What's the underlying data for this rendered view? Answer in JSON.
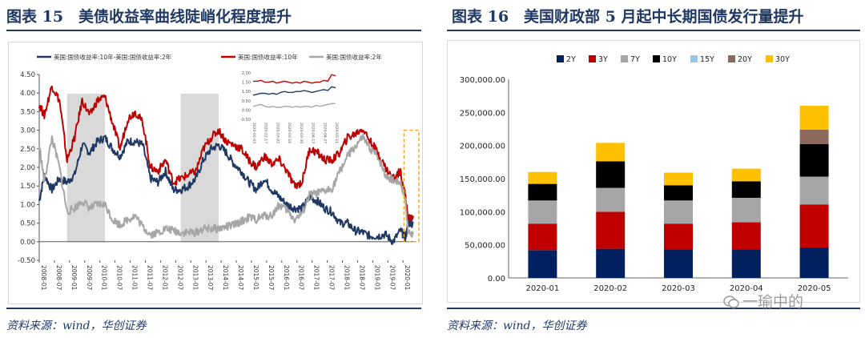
{
  "left": {
    "title": "图表 15　美债收益率曲线陡峭化程度提升",
    "source": "资料来源：wind，华创证券"
  },
  "right": {
    "title": "图表 16　美国财政部 5 月起中长期国债发行量提升",
    "source": "资料来源：wind，华创证券"
  },
  "watermark": "一瑜中的",
  "chart_data": [
    {
      "type": "line",
      "title": "",
      "legend_position": "top",
      "ylim": [
        -0.5,
        4.5
      ],
      "y_ticks": [
        "-0.50",
        "0.00",
        "0.50",
        "1.00",
        "1.50",
        "2.00",
        "2.50",
        "3.00",
        "3.50",
        "4.00",
        "4.50"
      ],
      "x_ticks": [
        "2008-01",
        "2008-07",
        "2009-01",
        "2009-07",
        "2010-01",
        "2010-07",
        "2011-01",
        "2011-07",
        "2012-01",
        "2012-07",
        "2013-01",
        "2013-07",
        "2014-01",
        "2014-07",
        "2015-01",
        "2015-07",
        "2016-01",
        "2016-07",
        "2017-01",
        "2017-07",
        "2018-01",
        "2018-07",
        "2019-01",
        "2019-07",
        "2020-01"
      ],
      "shaded_periods": [
        [
          "2008-12",
          "2010-03"
        ],
        [
          "2012-09",
          "2013-12"
        ]
      ],
      "highlight_box": [
        "2020-02",
        "2020-06"
      ],
      "series": [
        {
          "name": "美国:国债收益率:10年-美国:国债收益率:2年",
          "color": "#1f3864",
          "points": [
            [
              "2008-01",
              1.1
            ],
            [
              "2008-03",
              1.8
            ],
            [
              "2008-06",
              1.4
            ],
            [
              "2008-09",
              1.7
            ],
            [
              "2008-12",
              1.6
            ],
            [
              "2009-03",
              1.8
            ],
            [
              "2009-06",
              2.6
            ],
            [
              "2009-09",
              2.4
            ],
            [
              "2009-12",
              2.7
            ],
            [
              "2010-03",
              2.8
            ],
            [
              "2010-06",
              2.5
            ],
            [
              "2010-09",
              2.3
            ],
            [
              "2010-12",
              2.7
            ],
            [
              "2011-03",
              2.7
            ],
            [
              "2011-06",
              2.6
            ],
            [
              "2011-09",
              1.7
            ],
            [
              "2011-12",
              1.6
            ],
            [
              "2012-03",
              1.9
            ],
            [
              "2012-06",
              1.4
            ],
            [
              "2012-09",
              1.4
            ],
            [
              "2012-12",
              1.5
            ],
            [
              "2013-03",
              1.7
            ],
            [
              "2013-06",
              2.2
            ],
            [
              "2013-09",
              2.5
            ],
            [
              "2013-12",
              2.6
            ],
            [
              "2014-03",
              2.4
            ],
            [
              "2014-06",
              2.1
            ],
            [
              "2014-09",
              1.9
            ],
            [
              "2014-12",
              1.6
            ],
            [
              "2015-03",
              1.4
            ],
            [
              "2015-06",
              1.7
            ],
            [
              "2015-09",
              1.4
            ],
            [
              "2015-12",
              1.2
            ],
            [
              "2016-03",
              1.0
            ],
            [
              "2016-06",
              0.9
            ],
            [
              "2016-09",
              0.9
            ],
            [
              "2016-12",
              1.2
            ],
            [
              "2017-03",
              1.1
            ],
            [
              "2017-06",
              0.9
            ],
            [
              "2017-09",
              0.8
            ],
            [
              "2017-12",
              0.5
            ],
            [
              "2018-03",
              0.5
            ],
            [
              "2018-06",
              0.3
            ],
            [
              "2018-09",
              0.25
            ],
            [
              "2018-12",
              0.15
            ],
            [
              "2019-03",
              0.15
            ],
            [
              "2019-06",
              0.2
            ],
            [
              "2019-09",
              0.0
            ],
            [
              "2019-12",
              0.3
            ],
            [
              "2020-02",
              0.1
            ],
            [
              "2020-03",
              0.5
            ],
            [
              "2020-05",
              0.5
            ]
          ]
        },
        {
          "name": "美国:国债收益率:10年",
          "color": "#c00000",
          "points": [
            [
              "2008-01",
              3.7
            ],
            [
              "2008-03",
              3.4
            ],
            [
              "2008-06",
              4.2
            ],
            [
              "2008-09",
              3.8
            ],
            [
              "2008-12",
              2.2
            ],
            [
              "2009-03",
              2.8
            ],
            [
              "2009-06",
              3.8
            ],
            [
              "2009-09",
              3.4
            ],
            [
              "2009-12",
              3.8
            ],
            [
              "2010-03",
              3.9
            ],
            [
              "2010-06",
              3.2
            ],
            [
              "2010-09",
              2.5
            ],
            [
              "2010-12",
              3.3
            ],
            [
              "2011-03",
              3.5
            ],
            [
              "2011-06",
              3.2
            ],
            [
              "2011-09",
              2.0
            ],
            [
              "2011-12",
              1.9
            ],
            [
              "2012-03",
              2.2
            ],
            [
              "2012-06",
              1.6
            ],
            [
              "2012-09",
              1.7
            ],
            [
              "2012-12",
              1.8
            ],
            [
              "2013-03",
              1.9
            ],
            [
              "2013-06",
              2.5
            ],
            [
              "2013-09",
              2.8
            ],
            [
              "2013-12",
              3.0
            ],
            [
              "2014-03",
              2.7
            ],
            [
              "2014-06",
              2.6
            ],
            [
              "2014-09",
              2.5
            ],
            [
              "2014-12",
              2.2
            ],
            [
              "2015-03",
              2.0
            ],
            [
              "2015-06",
              2.3
            ],
            [
              "2015-09",
              2.1
            ],
            [
              "2015-12",
              2.2
            ],
            [
              "2016-03",
              1.9
            ],
            [
              "2016-06",
              1.5
            ],
            [
              "2016-09",
              1.6
            ],
            [
              "2016-12",
              2.5
            ],
            [
              "2017-03",
              2.4
            ],
            [
              "2017-06",
              2.2
            ],
            [
              "2017-09",
              2.2
            ],
            [
              "2017-12",
              2.4
            ],
            [
              "2018-03",
              2.8
            ],
            [
              "2018-06",
              2.9
            ],
            [
              "2018-09",
              3.05
            ],
            [
              "2018-12",
              2.7
            ],
            [
              "2019-03",
              2.4
            ],
            [
              "2019-06",
              2.0
            ],
            [
              "2019-09",
              1.7
            ],
            [
              "2019-12",
              1.9
            ],
            [
              "2020-02",
              1.2
            ],
            [
              "2020-03",
              0.6
            ],
            [
              "2020-05",
              0.7
            ]
          ]
        },
        {
          "name": "美国:国债收益率:2年",
          "color": "#a6a6a6",
          "points": [
            [
              "2008-01",
              2.6
            ],
            [
              "2008-03",
              1.6
            ],
            [
              "2008-06",
              2.8
            ],
            [
              "2008-09",
              2.0
            ],
            [
              "2008-12",
              0.8
            ],
            [
              "2009-03",
              0.9
            ],
            [
              "2009-06",
              1.1
            ],
            [
              "2009-09",
              0.9
            ],
            [
              "2009-12",
              1.0
            ],
            [
              "2010-03",
              1.0
            ],
            [
              "2010-06",
              0.6
            ],
            [
              "2010-09",
              0.45
            ],
            [
              "2010-12",
              0.6
            ],
            [
              "2011-03",
              0.7
            ],
            [
              "2011-06",
              0.4
            ],
            [
              "2011-09",
              0.2
            ],
            [
              "2011-12",
              0.25
            ],
            [
              "2012-03",
              0.35
            ],
            [
              "2012-06",
              0.3
            ],
            [
              "2012-09",
              0.25
            ],
            [
              "2012-12",
              0.25
            ],
            [
              "2013-03",
              0.25
            ],
            [
              "2013-06",
              0.35
            ],
            [
              "2013-09",
              0.35
            ],
            [
              "2013-12",
              0.35
            ],
            [
              "2014-03",
              0.4
            ],
            [
              "2014-06",
              0.45
            ],
            [
              "2014-09",
              0.55
            ],
            [
              "2014-12",
              0.65
            ],
            [
              "2015-03",
              0.6
            ],
            [
              "2015-06",
              0.7
            ],
            [
              "2015-09",
              0.7
            ],
            [
              "2015-12",
              1.0
            ],
            [
              "2016-03",
              0.85
            ],
            [
              "2016-06",
              0.6
            ],
            [
              "2016-09",
              0.75
            ],
            [
              "2016-12",
              1.25
            ],
            [
              "2017-03",
              1.3
            ],
            [
              "2017-06",
              1.35
            ],
            [
              "2017-09",
              1.45
            ],
            [
              "2017-12",
              1.9
            ],
            [
              "2018-03",
              2.3
            ],
            [
              "2018-06",
              2.55
            ],
            [
              "2018-09",
              2.8
            ],
            [
              "2018-12",
              2.5
            ],
            [
              "2019-03",
              2.3
            ],
            [
              "2019-06",
              1.8
            ],
            [
              "2019-09",
              1.65
            ],
            [
              "2019-12",
              1.6
            ],
            [
              "2020-02",
              1.1
            ],
            [
              "2020-03",
              0.25
            ],
            [
              "2020-05",
              0.2
            ]
          ]
        }
      ],
      "inset": {
        "ylim": [
          -0.5,
          2.0
        ],
        "y_ticks": [
          "2.00",
          "1.50",
          "1.00",
          "0.50",
          "0.00",
          "-0.50"
        ],
        "x_ticks": [
          "2020-02-03",
          "2020-02-17",
          "2020-03-02",
          "2020-03-16",
          "2020-03-30",
          "2020-04-13",
          "2020-04-27",
          "2020-05-11"
        ],
        "series": [
          {
            "color": "#c00000",
            "values": [
              1.55,
              1.55,
              1.6,
              1.5,
              1.5,
              1.55,
              1.45,
              1.5,
              1.55,
              1.5,
              1.45,
              1.5,
              1.45,
              1.55,
              1.5,
              1.45,
              1.5,
              1.5,
              1.6,
              1.55,
              1.9,
              1.85
            ]
          },
          {
            "color": "#1f3864",
            "values": [
              0.8,
              0.85,
              0.9,
              0.9,
              0.85,
              0.9,
              0.85,
              0.95,
              1.0,
              0.95,
              0.95,
              1.0,
              1.0,
              1.05,
              1.0,
              0.95,
              1.0,
              1.05,
              1.1,
              1.05,
              1.25,
              1.2
            ]
          },
          {
            "color": "#a6a6a6",
            "values": [
              0.2,
              0.25,
              0.3,
              0.2,
              0.15,
              0.2,
              0.15,
              0.15,
              0.2,
              0.2,
              0.15,
              0.2,
              0.15,
              0.2,
              0.2,
              0.15,
              0.25,
              0.2,
              0.25,
              0.3,
              0.35,
              0.35
            ]
          }
        ]
      }
    },
    {
      "type": "bar",
      "stacked": true,
      "title": "",
      "legend_position": "top",
      "categories": [
        "2020-01",
        "2020-02",
        "2020-03",
        "2020-04",
        "2020-05"
      ],
      "ylim": [
        0,
        300000
      ],
      "y_ticks": [
        "0.00",
        "50,000.00",
        "100,000.00",
        "150,000.00",
        "200,000.00",
        "250,000.00",
        "300,000.00"
      ],
      "series": [
        {
          "name": "2Y",
          "color": "#002060",
          "values": [
            42000,
            44000,
            43000,
            43000,
            46000
          ]
        },
        {
          "name": "3Y",
          "color": "#c00000",
          "values": [
            40000,
            56000,
            39000,
            41000,
            65000
          ]
        },
        {
          "name": "7Y",
          "color": "#a6a6a6",
          "values": [
            35000,
            36000,
            35000,
            37000,
            42000
          ]
        },
        {
          "name": "10Y",
          "color": "#000000",
          "values": [
            25000,
            40000,
            23000,
            25000,
            49000
          ]
        },
        {
          "name": "15Y",
          "color": "#9dc3e6",
          "values": [
            0,
            0,
            0,
            0,
            0
          ]
        },
        {
          "name": "20Y",
          "color": "#8c6b5e",
          "values": [
            0,
            0,
            0,
            0,
            22000
          ]
        },
        {
          "name": "30Y",
          "color": "#ffc000",
          "values": [
            18000,
            28000,
            19000,
            19000,
            36000
          ]
        }
      ]
    }
  ]
}
